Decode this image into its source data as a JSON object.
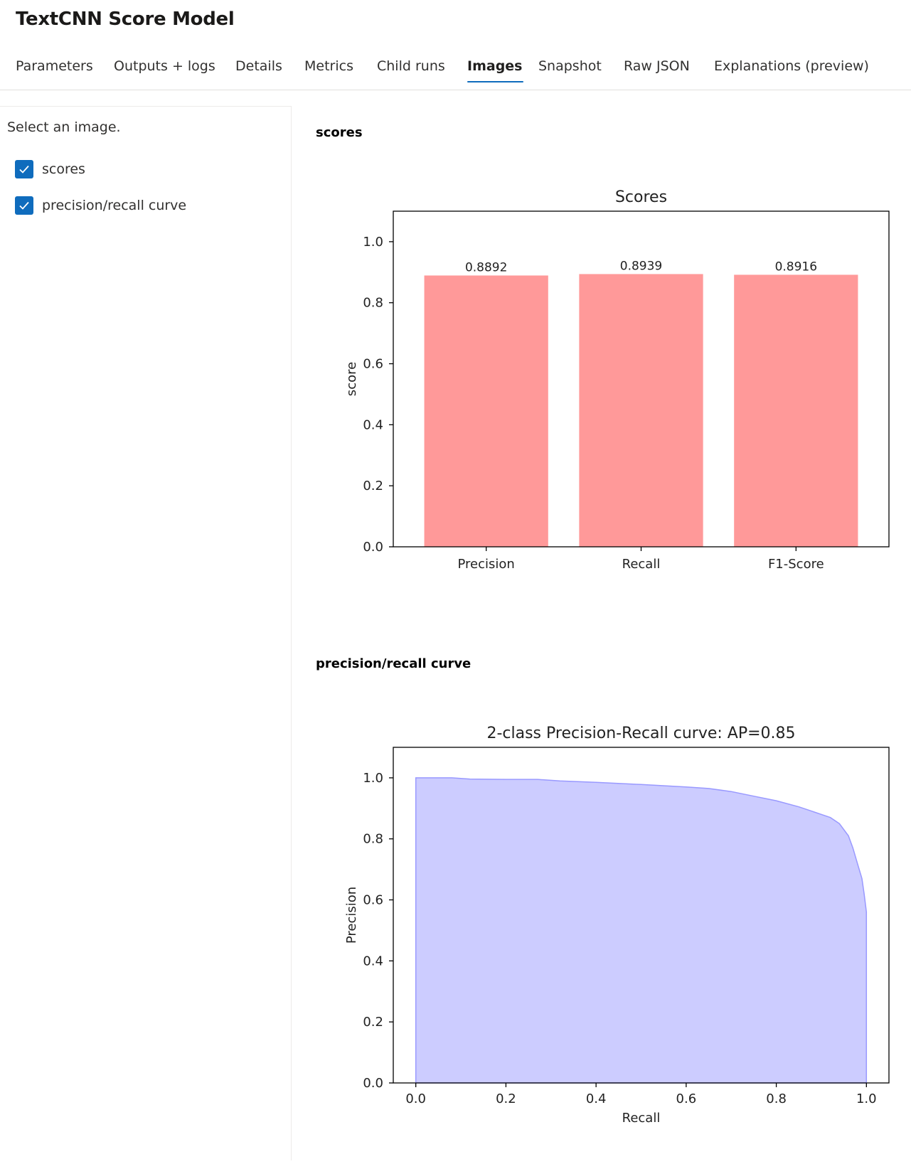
{
  "page": {
    "title": "TextCNN Score Model"
  },
  "tabs": [
    {
      "label": "Parameters",
      "active": false
    },
    {
      "label": "Outputs + logs",
      "active": false
    },
    {
      "label": "Details",
      "active": false
    },
    {
      "label": "Metrics",
      "active": false
    },
    {
      "label": "Child runs",
      "active": false
    },
    {
      "label": "Images",
      "active": true
    },
    {
      "label": "Snapshot",
      "active": false
    },
    {
      "label": "Raw JSON",
      "active": false
    },
    {
      "label": "Explanations (preview)",
      "active": false
    }
  ],
  "sidebar": {
    "hint": "Select an image.",
    "items": [
      {
        "label": "scores",
        "checked": true
      },
      {
        "label": "precision/recall curve",
        "checked": true
      }
    ]
  },
  "sections": [
    {
      "heading": "scores"
    },
    {
      "heading": "precision/recall curve"
    }
  ],
  "colors": {
    "accent": "#0f6cbd",
    "bar_fill": "#ff9999",
    "pr_fill": "#ccccff",
    "pr_line": "#9999ff"
  },
  "chart_data": [
    {
      "type": "bar",
      "title": "Scores",
      "xlabel": "",
      "ylabel": "score",
      "categories": [
        "Precision",
        "Recall",
        "F1-Score"
      ],
      "values": [
        0.8892,
        0.8939,
        0.8916
      ],
      "value_labels": [
        "0.8892",
        "0.8939",
        "0.8916"
      ],
      "ylim": [
        0,
        1.1
      ],
      "yticks": [
        "0.0",
        "0.2",
        "0.4",
        "0.6",
        "0.8",
        "1.0"
      ],
      "grid": false
    },
    {
      "type": "area",
      "title": "2-class Precision-Recall curve: AP=0.85",
      "xlabel": "Recall",
      "ylabel": "Precision",
      "xlim": [
        -0.05,
        1.05
      ],
      "ylim": [
        0,
        1.1
      ],
      "xticks": [
        "0.0",
        "0.2",
        "0.4",
        "0.6",
        "0.8",
        "1.0"
      ],
      "yticks": [
        "0.0",
        "0.2",
        "0.4",
        "0.6",
        "0.8",
        "1.0"
      ],
      "grid": false,
      "x": [
        0.0,
        0.08,
        0.12,
        0.2,
        0.27,
        0.32,
        0.4,
        0.5,
        0.6,
        0.65,
        0.7,
        0.75,
        0.8,
        0.85,
        0.88,
        0.92,
        0.94,
        0.96,
        0.97,
        0.98,
        0.99,
        0.995,
        1.0
      ],
      "y": [
        1.0,
        1.0,
        0.996,
        0.995,
        0.995,
        0.99,
        0.985,
        0.978,
        0.97,
        0.965,
        0.955,
        0.94,
        0.925,
        0.905,
        0.89,
        0.87,
        0.85,
        0.81,
        0.77,
        0.72,
        0.67,
        0.62,
        0.56
      ],
      "baseline": 0.0
    }
  ]
}
